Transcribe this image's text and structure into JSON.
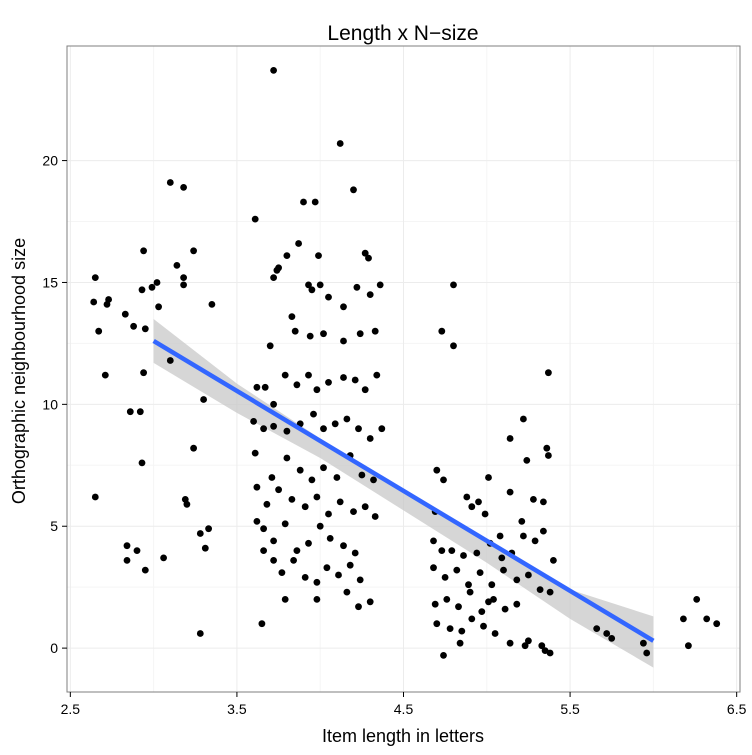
{
  "chart_data": {
    "type": "scatter",
    "title": "Length x N−size",
    "xlabel": "Item length in letters",
    "ylabel": "Orthographic neighbourhood size",
    "xlim": [
      2.48,
      6.52
    ],
    "ylim": [
      -1.8,
      24.7
    ],
    "x_ticks": [
      2.5,
      3.5,
      4.5,
      5.5,
      6.5
    ],
    "x_tick_labels": [
      "2.5",
      "3.5",
      "4.5",
      "5.5",
      "6.5"
    ],
    "y_ticks": [
      0,
      5,
      10,
      15,
      20
    ],
    "y_tick_labels": [
      "0",
      "5",
      "10",
      "15",
      "20"
    ],
    "grid": true,
    "series": [
      {
        "points": [
          [
            2.65,
            15.2
          ],
          [
            2.64,
            14.2
          ],
          [
            2.67,
            13.0
          ],
          [
            2.73,
            14.3
          ],
          [
            2.72,
            14.1
          ],
          [
            2.71,
            11.2
          ],
          [
            2.65,
            6.2
          ],
          [
            2.83,
            13.7
          ],
          [
            2.88,
            13.2
          ],
          [
            2.93,
            14.7
          ],
          [
            2.95,
            13.1
          ],
          [
            2.94,
            11.3
          ],
          [
            2.86,
            9.7
          ],
          [
            2.92,
            9.7
          ],
          [
            2.93,
            7.6
          ],
          [
            2.84,
            4.2
          ],
          [
            2.84,
            3.6
          ],
          [
            2.9,
            4.0
          ],
          [
            2.95,
            3.2
          ],
          [
            2.94,
            16.3
          ],
          [
            2.99,
            14.8
          ],
          [
            3.02,
            15.0
          ],
          [
            3.03,
            14.0
          ],
          [
            3.1,
            19.1
          ],
          [
            3.18,
            18.9
          ],
          [
            3.14,
            15.7
          ],
          [
            3.24,
            16.3
          ],
          [
            3.18,
            15.2
          ],
          [
            3.18,
            14.9
          ],
          [
            3.1,
            11.8
          ],
          [
            3.3,
            10.2
          ],
          [
            3.35,
            14.1
          ],
          [
            3.24,
            8.2
          ],
          [
            3.19,
            6.1
          ],
          [
            3.2,
            5.9
          ],
          [
            3.28,
            4.7
          ],
          [
            3.33,
            4.9
          ],
          [
            3.31,
            4.1
          ],
          [
            3.06,
            3.7
          ],
          [
            3.28,
            0.6
          ],
          [
            3.61,
            17.6
          ],
          [
            3.72,
            23.7
          ],
          [
            3.9,
            18.3
          ],
          [
            3.97,
            18.3
          ],
          [
            4.12,
            20.7
          ],
          [
            4.2,
            18.8
          ],
          [
            3.8,
            16.1
          ],
          [
            3.87,
            16.6
          ],
          [
            3.74,
            15.5
          ],
          [
            3.72,
            15.2
          ],
          [
            3.75,
            15.6
          ],
          [
            3.99,
            16.1
          ],
          [
            4.27,
            16.2
          ],
          [
            4.29,
            16.0
          ],
          [
            3.93,
            14.9
          ],
          [
            3.95,
            14.7
          ],
          [
            4.0,
            14.9
          ],
          [
            4.05,
            14.4
          ],
          [
            4.14,
            14.0
          ],
          [
            4.22,
            14.8
          ],
          [
            4.3,
            14.5
          ],
          [
            4.36,
            14.9
          ],
          [
            3.7,
            12.4
          ],
          [
            3.83,
            13.6
          ],
          [
            3.85,
            13.0
          ],
          [
            3.94,
            12.8
          ],
          [
            4.02,
            12.9
          ],
          [
            4.14,
            12.6
          ],
          [
            4.24,
            12.9
          ],
          [
            4.33,
            13.0
          ],
          [
            3.62,
            10.7
          ],
          [
            3.67,
            10.7
          ],
          [
            3.72,
            10.0
          ],
          [
            3.79,
            11.2
          ],
          [
            3.86,
            10.8
          ],
          [
            3.93,
            11.2
          ],
          [
            3.98,
            10.6
          ],
          [
            4.05,
            10.9
          ],
          [
            4.14,
            11.1
          ],
          [
            4.21,
            11.0
          ],
          [
            4.27,
            10.6
          ],
          [
            4.34,
            11.2
          ],
          [
            3.6,
            9.3
          ],
          [
            3.66,
            9.0
          ],
          [
            3.72,
            9.1
          ],
          [
            3.8,
            8.9
          ],
          [
            3.88,
            9.2
          ],
          [
            3.96,
            9.6
          ],
          [
            4.02,
            9.0
          ],
          [
            4.09,
            9.2
          ],
          [
            4.16,
            9.4
          ],
          [
            4.23,
            9.0
          ],
          [
            4.3,
            8.6
          ],
          [
            4.37,
            9.0
          ],
          [
            3.61,
            8.0
          ],
          [
            3.71,
            7.0
          ],
          [
            3.8,
            7.8
          ],
          [
            3.88,
            7.3
          ],
          [
            3.95,
            6.9
          ],
          [
            4.02,
            7.4
          ],
          [
            4.1,
            7.0
          ],
          [
            4.18,
            7.9
          ],
          [
            4.25,
            7.1
          ],
          [
            4.32,
            6.9
          ],
          [
            3.62,
            6.6
          ],
          [
            3.68,
            5.9
          ],
          [
            3.75,
            6.5
          ],
          [
            3.83,
            6.1
          ],
          [
            3.91,
            5.8
          ],
          [
            3.98,
            6.2
          ],
          [
            4.05,
            5.5
          ],
          [
            4.12,
            6.0
          ],
          [
            4.2,
            5.6
          ],
          [
            4.27,
            5.8
          ],
          [
            3.62,
            5.2
          ],
          [
            3.66,
            4.9
          ],
          [
            3.72,
            4.4
          ],
          [
            3.79,
            5.1
          ],
          [
            3.86,
            4.0
          ],
          [
            3.93,
            4.3
          ],
          [
            4.0,
            5.0
          ],
          [
            4.06,
            4.5
          ],
          [
            4.14,
            4.2
          ],
          [
            4.21,
            3.9
          ],
          [
            4.33,
            5.4
          ],
          [
            3.66,
            4.0
          ],
          [
            3.72,
            3.6
          ],
          [
            3.77,
            3.1
          ],
          [
            3.84,
            3.6
          ],
          [
            3.91,
            2.9
          ],
          [
            3.98,
            2.7
          ],
          [
            4.04,
            3.3
          ],
          [
            4.11,
            3.0
          ],
          [
            4.18,
            3.4
          ],
          [
            4.24,
            2.8
          ],
          [
            3.79,
            2.0
          ],
          [
            3.98,
            2.0
          ],
          [
            4.16,
            2.3
          ],
          [
            4.23,
            1.7
          ],
          [
            4.3,
            1.9
          ],
          [
            3.65,
            1.0
          ],
          [
            4.73,
            13.0
          ],
          [
            4.8,
            14.9
          ],
          [
            4.8,
            12.4
          ],
          [
            4.88,
            6.2
          ],
          [
            4.95,
            6.0
          ],
          [
            5.01,
            7.0
          ],
          [
            4.91,
            5.8
          ],
          [
            4.99,
            5.5
          ],
          [
            5.14,
            8.6
          ],
          [
            5.22,
            9.4
          ],
          [
            5.24,
            7.7
          ],
          [
            5.36,
            8.2
          ],
          [
            5.37,
            11.3
          ],
          [
            5.37,
            7.9
          ],
          [
            4.7,
            7.3
          ],
          [
            4.74,
            6.9
          ],
          [
            4.69,
            5.6
          ],
          [
            4.68,
            4.4
          ],
          [
            4.73,
            4.0
          ],
          [
            4.79,
            4.0
          ],
          [
            4.86,
            3.8
          ],
          [
            4.94,
            3.9
          ],
          [
            5.02,
            4.3
          ],
          [
            5.09,
            3.7
          ],
          [
            5.15,
            3.9
          ],
          [
            5.22,
            4.6
          ],
          [
            5.29,
            4.4
          ],
          [
            5.34,
            4.8
          ],
          [
            5.4,
            3.6
          ],
          [
            4.68,
            3.3
          ],
          [
            4.75,
            2.9
          ],
          [
            4.82,
            3.2
          ],
          [
            4.89,
            2.6
          ],
          [
            4.96,
            3.1
          ],
          [
            5.03,
            2.6
          ],
          [
            5.1,
            3.2
          ],
          [
            5.18,
            2.8
          ],
          [
            5.25,
            3.0
          ],
          [
            5.32,
            2.4
          ],
          [
            5.38,
            2.3
          ],
          [
            4.69,
            1.8
          ],
          [
            4.76,
            2.0
          ],
          [
            4.83,
            1.7
          ],
          [
            4.9,
            2.3
          ],
          [
            4.97,
            1.5
          ],
          [
            5.04,
            2.0
          ],
          [
            5.11,
            1.6
          ],
          [
            5.18,
            1.8
          ],
          [
            5.25,
            0.3
          ],
          [
            5.33,
            0.1
          ],
          [
            4.7,
            1.0
          ],
          [
            4.78,
            0.8
          ],
          [
            4.84,
            0.2
          ],
          [
            4.91,
            1.2
          ],
          [
            4.98,
            0.9
          ],
          [
            5.05,
            0.6
          ],
          [
            5.14,
            0.2
          ],
          [
            5.23,
            0.1
          ],
          [
            5.35,
            -0.1
          ],
          [
            5.38,
            -0.2
          ],
          [
            4.74,
            -0.3
          ],
          [
            4.85,
            0.7
          ],
          [
            5.01,
            1.9
          ],
          [
            5.28,
            6.1
          ],
          [
            5.34,
            6.0
          ],
          [
            5.21,
            5.2
          ],
          [
            5.14,
            6.4
          ],
          [
            5.08,
            4.6
          ],
          [
            5.66,
            0.8
          ],
          [
            5.72,
            0.6
          ],
          [
            5.75,
            0.4
          ],
          [
            5.94,
            0.2
          ],
          [
            5.96,
            -0.2
          ],
          [
            6.18,
            1.2
          ],
          [
            6.21,
            0.1
          ],
          [
            6.26,
            2.0
          ],
          [
            6.32,
            1.2
          ],
          [
            6.38,
            1.0
          ]
        ]
      }
    ],
    "fit_line": {
      "x": [
        3.0,
        6.0
      ],
      "y": [
        12.6,
        0.3
      ]
    },
    "confidence_band": {
      "x": [
        3.0,
        3.5,
        4.0,
        4.5,
        5.0,
        5.5,
        6.0
      ],
      "upper": [
        13.5,
        10.85,
        8.6,
        6.45,
        4.3,
        2.4,
        1.3
      ],
      "lower": [
        11.7,
        9.65,
        7.8,
        5.65,
        3.5,
        1.2,
        -0.8
      ]
    },
    "colors": {
      "point": "#000000",
      "fit_line": "#3366ff",
      "band": "#c8c8c8",
      "grid": "#ececec",
      "border": "#7f7f7f"
    }
  }
}
